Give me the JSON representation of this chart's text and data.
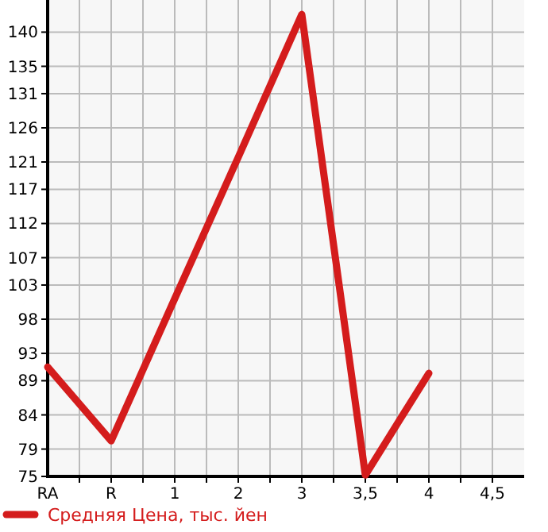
{
  "chart_data": {
    "type": "line",
    "categories": [
      "RA",
      "R",
      "1",
      "2",
      "3",
      "3,5",
      "4",
      "4,5"
    ],
    "series": [
      {
        "name": "Средняя Цена, тыс. йен",
        "color": "#d41c1c",
        "values": [
          91.0,
          80.2,
          101.0,
          121.7,
          142.6,
          75.2,
          90.1,
          null
        ]
      }
    ],
    "ylim": [
      75,
      144.7
    ],
    "yticks": [
      75,
      79,
      84,
      89,
      93,
      98,
      103,
      107,
      112,
      117,
      121,
      126,
      131,
      135,
      140
    ],
    "grid": true,
    "legend": "bottom left",
    "marker": "none",
    "line_style": "solid"
  }
}
